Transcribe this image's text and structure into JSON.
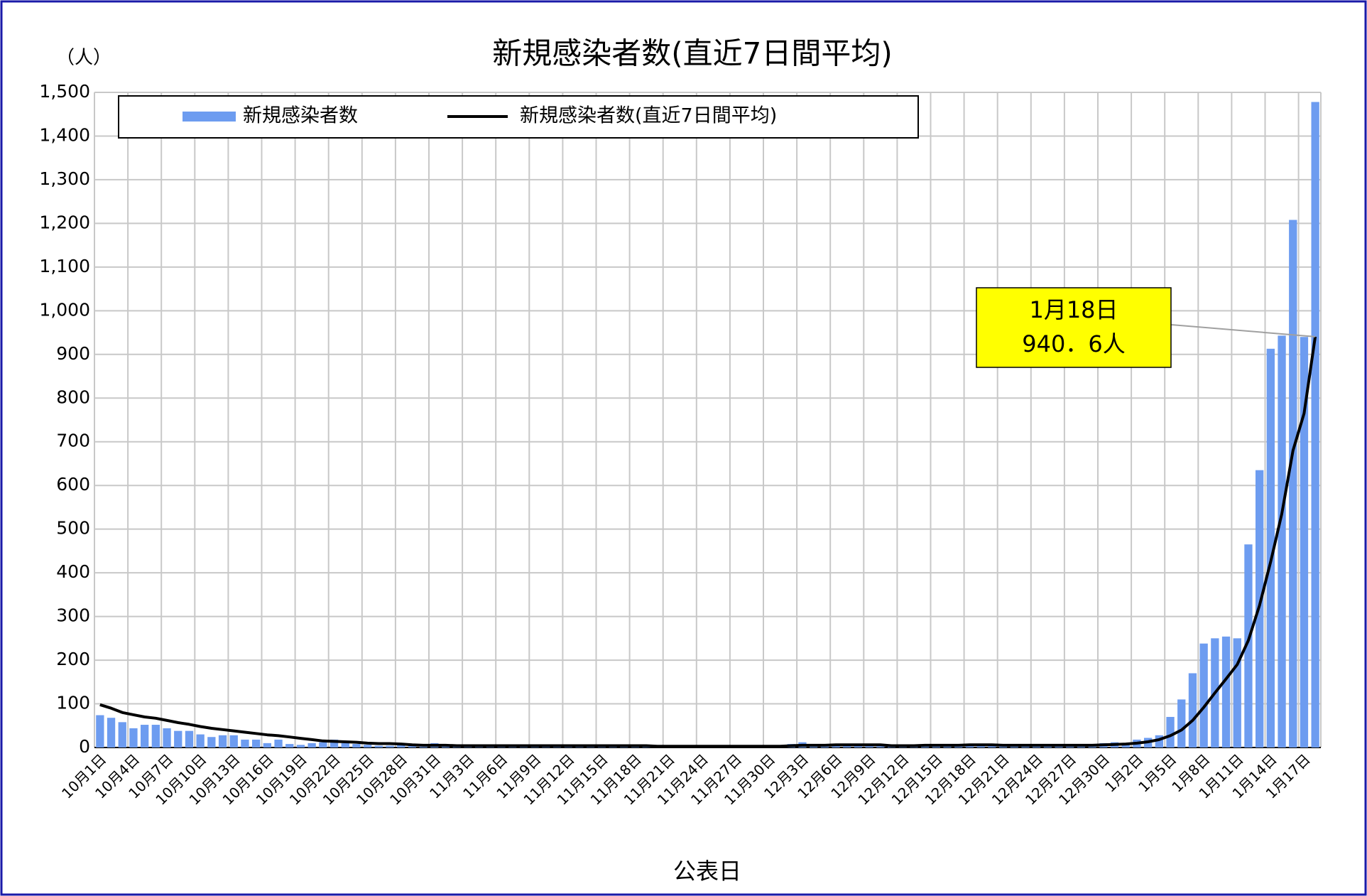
{
  "chart_data": {
    "type": "bar",
    "title": "新規感染者数(直近7日間平均)",
    "y_unit": "（人）",
    "x_label": "公表日",
    "categories": [
      "10月1日",
      null,
      null,
      "10月4日",
      null,
      null,
      "10月7日",
      null,
      null,
      "10月10日",
      null,
      null,
      "10月13日",
      null,
      null,
      "10月16日",
      null,
      null,
      "10月19日",
      null,
      null,
      "10月22日",
      null,
      null,
      "10月25日",
      null,
      null,
      "10月28日",
      null,
      null,
      "10月31日",
      null,
      null,
      "11月3日",
      null,
      null,
      "11月6日",
      null,
      null,
      "11月9日",
      null,
      null,
      "11月12日",
      null,
      null,
      "11月15日",
      null,
      null,
      "11月18日",
      null,
      null,
      "11月21日",
      null,
      null,
      "11月24日",
      null,
      null,
      "11月27日",
      null,
      null,
      "11月30日",
      null,
      null,
      "12月3日",
      null,
      null,
      "12月6日",
      null,
      null,
      "12月9日",
      null,
      null,
      "12月12日",
      null,
      null,
      "12月15日",
      null,
      null,
      "12月18日",
      null,
      null,
      "12月21日",
      null,
      null,
      "12月24日",
      null,
      null,
      "12月27日",
      null,
      null,
      "12月30日",
      null,
      null,
      "1月2日",
      null,
      null,
      "1月5日",
      null,
      null,
      "1月8日",
      null,
      null,
      "1月11日",
      null,
      null,
      "1月14日",
      null,
      null,
      "1月17日",
      null
    ],
    "series": [
      {
        "name": "新規感染者数",
        "type": "bar",
        "color": "#6d9cf0",
        "values": [
          74,
          68,
          58,
          44,
          52,
          52,
          44,
          38,
          38,
          30,
          24,
          28,
          28,
          18,
          18,
          10,
          18,
          8,
          6,
          10,
          12,
          18,
          10,
          8,
          6,
          4,
          4,
          6,
          4,
          2,
          10,
          4,
          2,
          3,
          5,
          2,
          3,
          4,
          2,
          3,
          5,
          3,
          2,
          4,
          3,
          2,
          5,
          3,
          4,
          2,
          3,
          1,
          2,
          3,
          2,
          1,
          2,
          3,
          2,
          4,
          5,
          3,
          8,
          12,
          3,
          5,
          6,
          4,
          6,
          5,
          3,
          2,
          5,
          6,
          4,
          6,
          5,
          6,
          8,
          7,
          4,
          5,
          6,
          4,
          5,
          6,
          5,
          4,
          6,
          5,
          10,
          12,
          10,
          18,
          22,
          28,
          70,
          110,
          170,
          238,
          250,
          254,
          250,
          465,
          635,
          913,
          943,
          1208,
          940,
          1478
        ]
      },
      {
        "name": "新規感染者数(直近7日間平均)",
        "type": "line",
        "color": "#000000",
        "values": [
          98,
          90,
          80,
          75,
          70,
          67,
          62,
          57,
          53,
          48,
          44,
          41,
          38,
          35,
          32,
          29,
          27,
          24,
          21,
          18,
          15,
          14,
          13,
          12,
          10,
          9,
          9,
          8,
          6,
          5,
          5,
          5,
          4,
          4,
          4,
          4,
          4,
          4,
          4,
          4,
          4,
          4,
          4,
          4,
          4,
          4,
          4,
          4,
          4,
          4,
          3,
          3,
          3,
          3,
          3,
          3,
          3,
          3,
          3,
          3,
          3,
          3,
          4,
          5,
          5,
          5,
          6,
          6,
          6,
          6,
          6,
          4,
          4,
          4,
          5,
          5,
          5,
          5,
          6,
          6,
          6,
          5,
          5,
          5,
          5,
          5,
          5,
          5,
          5,
          5,
          6,
          7,
          8,
          10,
          13,
          18,
          27,
          40,
          62,
          92,
          125,
          157,
          190,
          245,
          325,
          425,
          535,
          680,
          765,
          940.6
        ]
      }
    ],
    "ylim": [
      0,
      1500
    ],
    "yticks": [
      0,
      100,
      200,
      300,
      400,
      500,
      600,
      700,
      800,
      900,
      {
        "value": 1000,
        "label": "1,000"
      },
      {
        "value": 1100,
        "label": "1,100"
      },
      {
        "value": 1200,
        "label": "1,200"
      },
      {
        "value": 1300,
        "label": "1,300"
      },
      {
        "value": 1400,
        "label": "1,400"
      },
      {
        "value": 1500,
        "label": "1,500"
      }
    ],
    "grid": true,
    "annotation": {
      "lines": [
        "1月18日",
        "940．6人"
      ],
      "background": "#ffff00"
    }
  }
}
